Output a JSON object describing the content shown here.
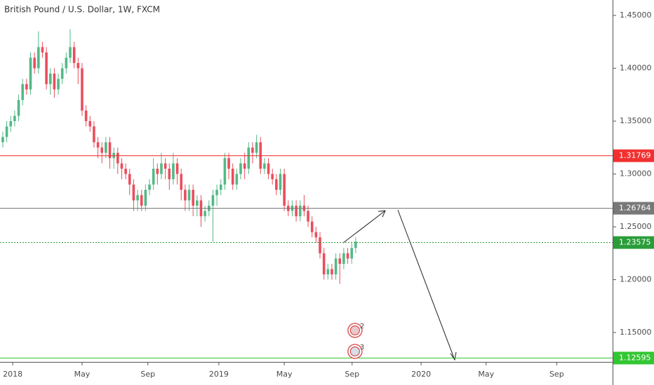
{
  "chart_data": {
    "type": "candlestick",
    "title": "British Pound / U.S. Dollar, 1W, FXCM",
    "up_color": "#53b987",
    "down_color": "#eb4d5c",
    "open": [
      1.33,
      1.335,
      1.345,
      1.35,
      1.355,
      1.37,
      1.385,
      1.38,
      1.41,
      1.4,
      1.42,
      1.415,
      1.385,
      1.395,
      1.38,
      1.39,
      1.4,
      1.41,
      1.42,
      1.405,
      1.4,
      1.36,
      1.35,
      1.345,
      1.33,
      1.325,
      1.32,
      1.33,
      1.315,
      1.32,
      1.31,
      1.305,
      1.3,
      1.29,
      1.275,
      1.28,
      1.27,
      1.285,
      1.29,
      1.305,
      1.3,
      1.31,
      1.305,
      1.295,
      1.31,
      1.3,
      1.285,
      1.275,
      1.285,
      1.27,
      1.275,
      1.26,
      1.265,
      1.27,
      1.28,
      1.285,
      1.29,
      1.315,
      1.305,
      1.29,
      1.3,
      1.31,
      1.305,
      1.325,
      1.32,
      1.33,
      1.305,
      1.31,
      1.3,
      1.295,
      1.285,
      1.3,
      1.27,
      1.265,
      1.27,
      1.26,
      1.27,
      1.265,
      1.255,
      1.245,
      1.24,
      1.225,
      1.205,
      1.21,
      1.205,
      1.22,
      1.215,
      1.225,
      1.22,
      1.23
    ],
    "high": [
      1.34,
      1.35,
      1.355,
      1.36,
      1.375,
      1.39,
      1.39,
      1.415,
      1.415,
      1.435,
      1.425,
      1.42,
      1.4,
      1.4,
      1.395,
      1.405,
      1.415,
      1.437,
      1.425,
      1.41,
      1.405,
      1.365,
      1.355,
      1.35,
      1.335,
      1.33,
      1.335,
      1.335,
      1.325,
      1.325,
      1.315,
      1.31,
      1.305,
      1.295,
      1.285,
      1.285,
      1.29,
      1.295,
      1.315,
      1.31,
      1.32,
      1.315,
      1.31,
      1.32,
      1.315,
      1.305,
      1.29,
      1.29,
      1.29,
      1.28,
      1.28,
      1.27,
      1.275,
      1.285,
      1.29,
      1.295,
      1.32,
      1.32,
      1.31,
      1.305,
      1.315,
      1.32,
      1.33,
      1.33,
      1.337,
      1.335,
      1.315,
      1.315,
      1.305,
      1.3,
      1.305,
      1.305,
      1.275,
      1.275,
      1.275,
      1.275,
      1.28,
      1.27,
      1.26,
      1.25,
      1.245,
      1.23,
      1.215,
      1.215,
      1.225,
      1.225,
      1.23,
      1.23,
      1.235,
      1.24
    ],
    "low": [
      1.325,
      1.33,
      1.34,
      1.345,
      1.35,
      1.365,
      1.375,
      1.375,
      1.395,
      1.395,
      1.41,
      1.38,
      1.375,
      1.372,
      1.375,
      1.385,
      1.395,
      1.405,
      1.4,
      1.385,
      1.355,
      1.345,
      1.34,
      1.325,
      1.315,
      1.31,
      1.315,
      1.305,
      1.305,
      1.3,
      1.295,
      1.295,
      1.28,
      1.265,
      1.265,
      1.265,
      1.265,
      1.28,
      1.285,
      1.29,
      1.295,
      1.295,
      1.285,
      1.29,
      1.29,
      1.275,
      1.265,
      1.265,
      1.26,
      1.26,
      1.25,
      1.255,
      1.26,
      1.236,
      1.27,
      1.28,
      1.285,
      1.295,
      1.285,
      1.285,
      1.295,
      1.295,
      1.3,
      1.31,
      1.315,
      1.3,
      1.3,
      1.295,
      1.29,
      1.28,
      1.28,
      1.265,
      1.26,
      1.26,
      1.255,
      1.255,
      1.26,
      1.25,
      1.24,
      1.235,
      1.22,
      1.2,
      1.2,
      1.2,
      1.2,
      1.196,
      1.21,
      1.215,
      1.215,
      1.225
    ],
    "close": [
      1.335,
      1.345,
      1.35,
      1.355,
      1.37,
      1.385,
      1.38,
      1.41,
      1.4,
      1.42,
      1.415,
      1.385,
      1.395,
      1.38,
      1.39,
      1.4,
      1.41,
      1.42,
      1.405,
      1.4,
      1.36,
      1.35,
      1.345,
      1.33,
      1.325,
      1.32,
      1.33,
      1.315,
      1.32,
      1.31,
      1.305,
      1.3,
      1.29,
      1.275,
      1.28,
      1.27,
      1.285,
      1.29,
      1.305,
      1.3,
      1.31,
      1.305,
      1.295,
      1.31,
      1.3,
      1.285,
      1.275,
      1.285,
      1.27,
      1.275,
      1.26,
      1.265,
      1.27,
      1.28,
      1.285,
      1.29,
      1.315,
      1.305,
      1.29,
      1.3,
      1.31,
      1.305,
      1.325,
      1.32,
      1.33,
      1.305,
      1.31,
      1.3,
      1.295,
      1.285,
      1.3,
      1.27,
      1.265,
      1.27,
      1.26,
      1.27,
      1.265,
      1.255,
      1.245,
      1.24,
      1.225,
      1.205,
      1.21,
      1.205,
      1.22,
      1.215,
      1.225,
      1.22,
      1.23,
      1.236
    ],
    "xlim": [
      -0.7,
      153.8
    ],
    "xticks": [
      {
        "value": 2.5,
        "label": "2018"
      },
      {
        "value": 20.0,
        "label": "May"
      },
      {
        "value": 36.6,
        "label": "Sep"
      },
      {
        "value": 54.5,
        "label": "2019"
      },
      {
        "value": 71.0,
        "label": "May"
      },
      {
        "value": 88.1,
        "label": "Sep"
      },
      {
        "value": 105.5,
        "label": "2020"
      },
      {
        "value": 121.9,
        "label": "May"
      },
      {
        "value": 139.7,
        "label": "Sep"
      }
    ],
    "ylim": [
      1.1222,
      1.4646
    ],
    "yticks": [
      {
        "value": 1.15,
        "label": "1.15000"
      },
      {
        "value": 1.2,
        "label": "1.20000"
      },
      {
        "value": 1.25,
        "label": "1.25000"
      },
      {
        "value": 1.3,
        "label": "1.30000"
      },
      {
        "value": 1.35,
        "label": "1.35000"
      },
      {
        "value": 1.4,
        "label": "1.40000"
      },
      {
        "value": 1.45,
        "label": "1.45000"
      }
    ],
    "levels": [
      {
        "value": 1.31769,
        "color": "#f23030",
        "style": "solid"
      },
      {
        "value": 1.26764,
        "color": "#787878",
        "style": "solid"
      },
      {
        "value": 1.23575,
        "color": "#2a9d3a",
        "style": "dotted"
      },
      {
        "value": 1.12595,
        "color": "#33c633",
        "style": "solid"
      }
    ],
    "events": [
      {
        "label": "2"
      },
      {
        "label": "3"
      }
    ]
  }
}
